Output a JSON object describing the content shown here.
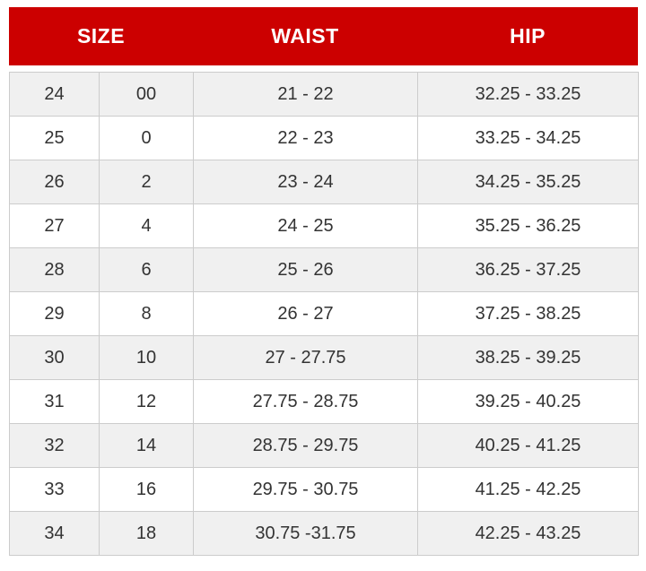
{
  "table": {
    "headers": [
      {
        "label": "SIZE",
        "colspan": 2
      },
      {
        "label": "WAIST",
        "colspan": 1
      },
      {
        "label": "HIP",
        "colspan": 1
      }
    ],
    "rows": [
      [
        "24",
        "00",
        "21 - 22",
        "32.25 - 33.25"
      ],
      [
        "25",
        "0",
        "22 - 23",
        "33.25 - 34.25"
      ],
      [
        "26",
        "2",
        "23 - 24",
        "34.25 - 35.25"
      ],
      [
        "27",
        "4",
        "24 - 25",
        "35.25 - 36.25"
      ],
      [
        "28",
        "6",
        "25 - 26",
        "36.25 - 37.25"
      ],
      [
        "29",
        "8",
        "26 - 27",
        "37.25 - 38.25"
      ],
      [
        "30",
        "10",
        "27 - 27.75",
        "38.25 - 39.25"
      ],
      [
        "31",
        "12",
        "27.75 - 28.75",
        "39.25 - 40.25"
      ],
      [
        "32",
        "14",
        "28.75 - 29.75",
        "40.25 - 41.25"
      ],
      [
        "33",
        "16",
        "29.75 - 30.75",
        "41.25 - 42.25"
      ],
      [
        "34",
        "18",
        "30.75 -31.75",
        "42.25 - 43.25"
      ]
    ],
    "colors": {
      "header_bg": "#cc0000",
      "header_text": "#ffffff",
      "row_alt_bg": "#f0f0f0",
      "row_bg": "#ffffff",
      "border": "#cccccc",
      "cell_text": "#333333"
    }
  }
}
